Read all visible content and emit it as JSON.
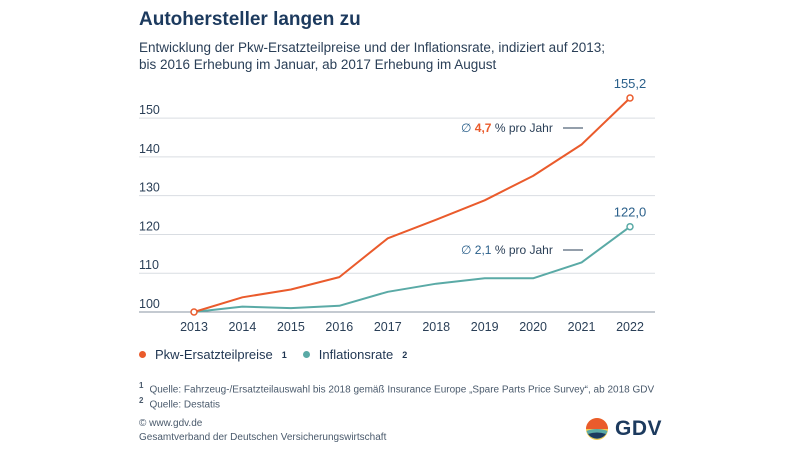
{
  "title": "Autohersteller langen zu",
  "subtitle_line1": "Entwicklung der Pkw-Ersatzteilpreise und der Inflationsrate, indiziert auf 2013;",
  "subtitle_line2": "bis 2016 Erhebung im Januar, ab 2017 Erhebung im August",
  "colors": {
    "orange": "#ea5b2c",
    "teal": "#5aaaa6",
    "grid": "#d9dde2"
  },
  "chart_data": {
    "type": "line",
    "x": [
      "2013",
      "2014",
      "2015",
      "2016",
      "2017",
      "2018",
      "2019",
      "2020",
      "2021",
      "2022"
    ],
    "ylim": [
      100,
      157
    ],
    "yticks": [
      100,
      110,
      120,
      130,
      140,
      150
    ],
    "series": [
      {
        "name": "Pkw-Ersatzteilpreise",
        "values": [
          100,
          103.8,
          105.8,
          109.0,
          119.0,
          123.8,
          128.8,
          135.1,
          143.2,
          155.2
        ],
        "end_label": "155,2"
      },
      {
        "name": "Inflationsrate",
        "values": [
          100,
          101.4,
          101.0,
          101.6,
          105.2,
          107.3,
          108.7,
          108.7,
          112.8,
          122.0
        ],
        "end_label": "122,0"
      }
    ],
    "annotations": [
      {
        "symbol": "∅",
        "value": "4,7",
        "text": "% pro Jahr"
      },
      {
        "symbol": "∅",
        "value": "2,1",
        "text": "% pro Jahr"
      }
    ]
  },
  "legend": [
    {
      "label": "Pkw-Ersatzteilpreise",
      "note": "1"
    },
    {
      "label": "Inflationsrate",
      "note": "2"
    }
  ],
  "footnotes": [
    {
      "num": "1",
      "text": "Quelle: Fahrzeug-/Ersatzteilauswahl bis 2018 gemäß Insurance Europe „Spare Parts Price Survey“, ab 2018 GDV"
    },
    {
      "num": "2",
      "text": "Quelle: Destatis"
    }
  ],
  "site": "© www.gdv.de",
  "organization": "Gesamtverband der Deutschen Versicherungswirtschaft",
  "logo_text": "GDV"
}
